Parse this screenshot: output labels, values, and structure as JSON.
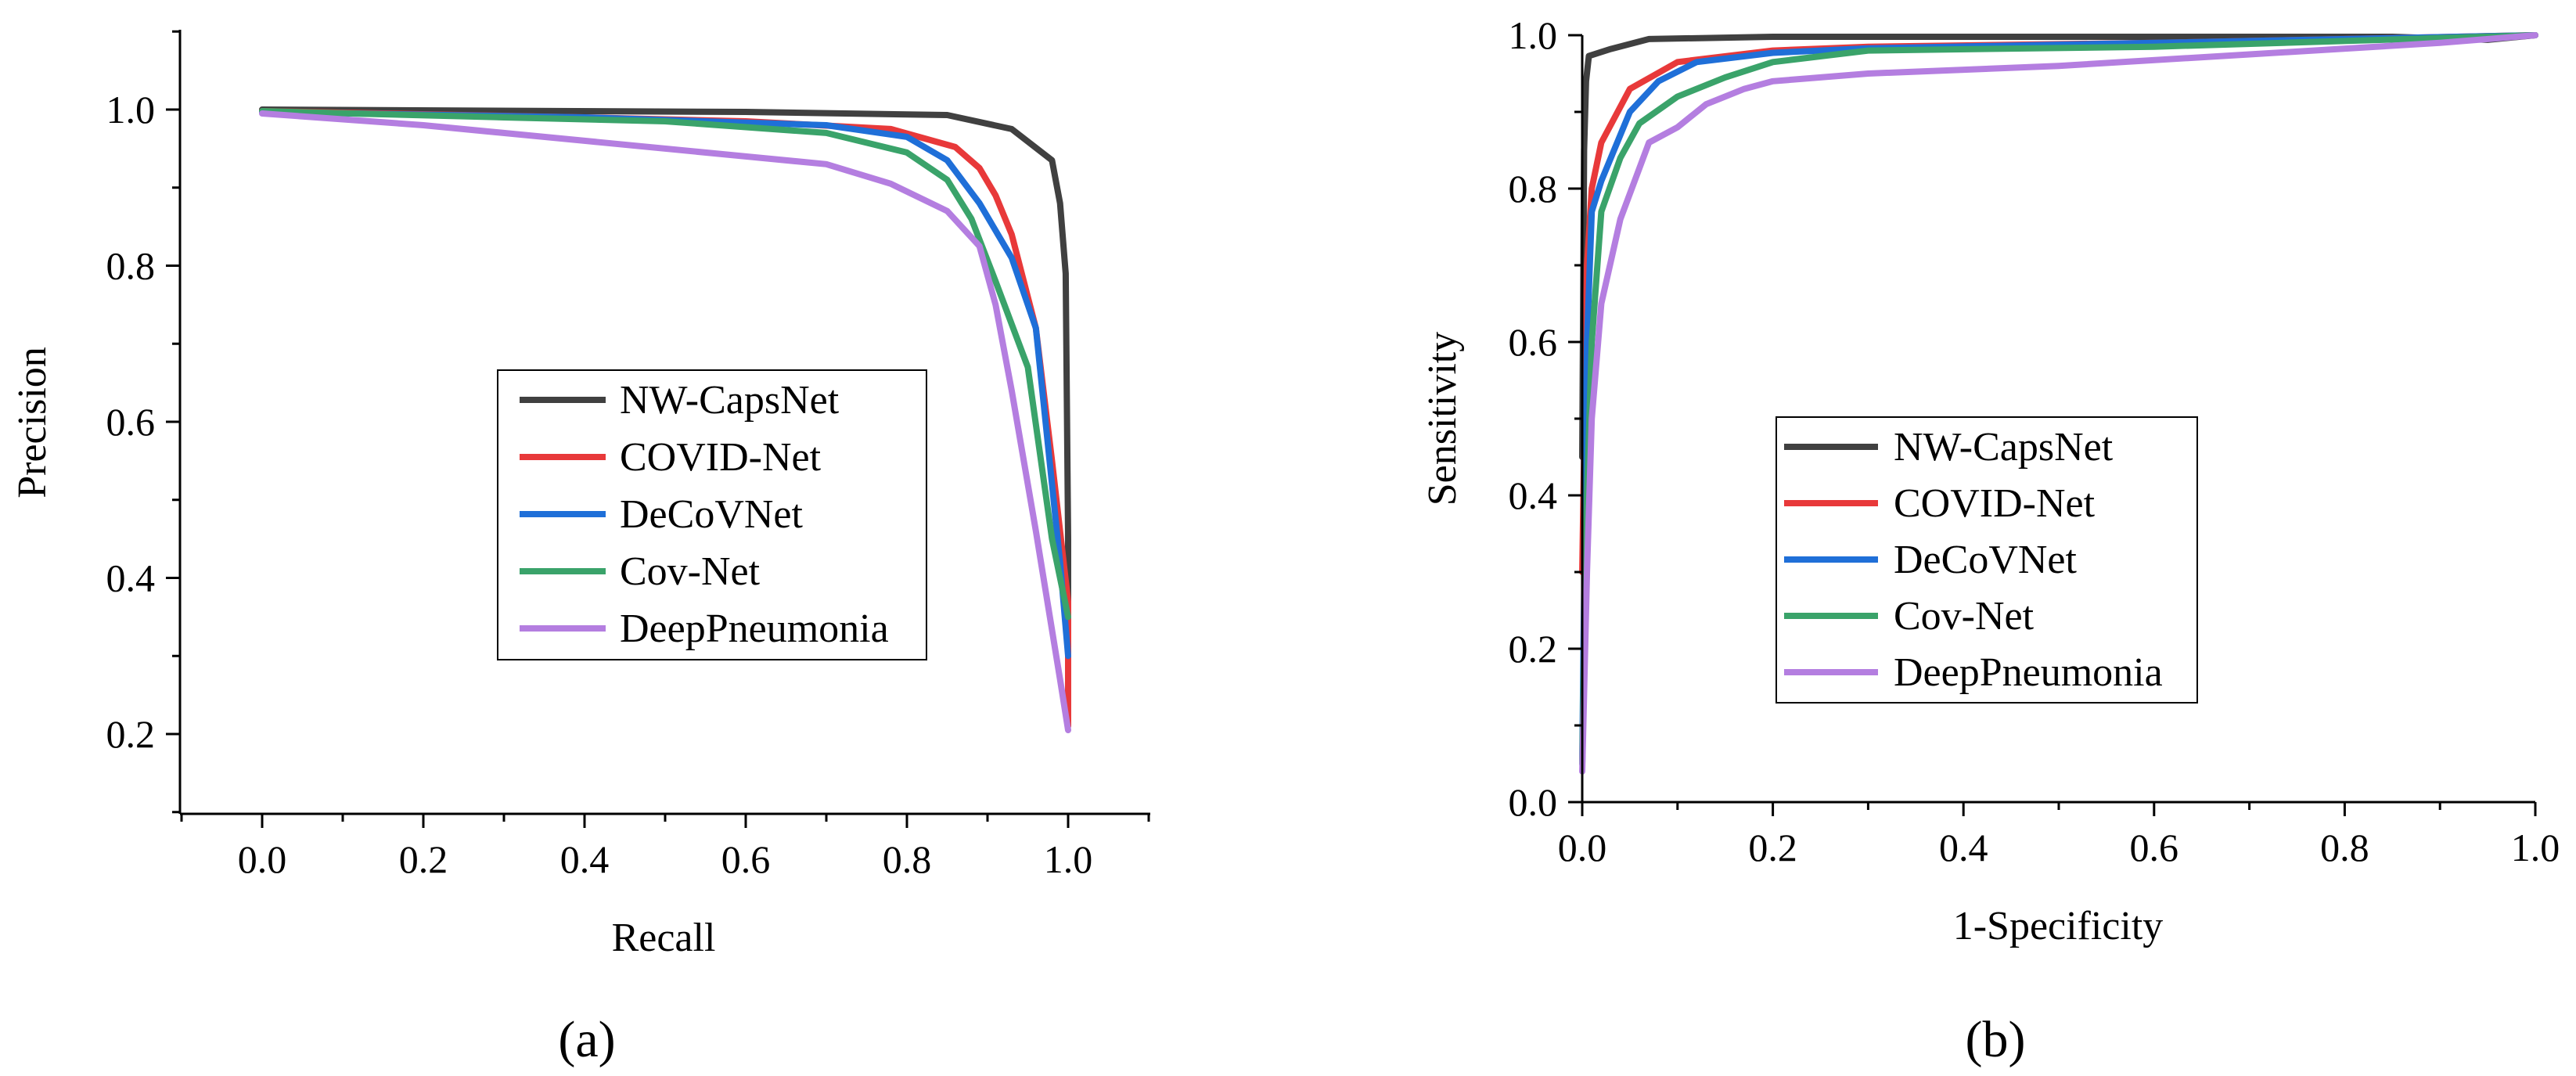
{
  "colors": {
    "NW-CapsNet": "#404040",
    "COVID-Net": "#e8393a",
    "DeCoVNet": "#1f6fd8",
    "Cov-Net": "#3aa36a",
    "DeepPneumonia": "#b47ee0"
  },
  "chart_data": [
    {
      "type": "line",
      "panel_label": "(a)",
      "xlabel": "Recall",
      "ylabel": "Precision",
      "xlim": [
        -0.1,
        1.1
      ],
      "ylim": [
        0.1,
        1.1
      ],
      "xticks": [
        "0.0",
        "0.2",
        "0.4",
        "0.6",
        "0.8",
        "1.0"
      ],
      "yticks": [
        "0.2",
        "0.4",
        "0.6",
        "0.8",
        "1.0"
      ],
      "legend_position": "center",
      "series": [
        {
          "name": "NW-CapsNet",
          "x": [
            0.0,
            0.6,
            0.85,
            0.93,
            0.98,
            0.99,
            0.997,
            1.0,
            1.0
          ],
          "y": [
            1.0,
            0.997,
            0.993,
            0.975,
            0.935,
            0.88,
            0.79,
            0.45,
            0.32
          ]
        },
        {
          "name": "COVID-Net",
          "x": [
            0.0,
            0.4,
            0.6,
            0.78,
            0.86,
            0.89,
            0.91,
            0.93,
            0.96,
            0.98,
            1.0,
            1.0
          ],
          "y": [
            0.998,
            0.99,
            0.985,
            0.975,
            0.952,
            0.925,
            0.89,
            0.84,
            0.72,
            0.55,
            0.37,
            0.21
          ]
        },
        {
          "name": "DeCoVNet",
          "x": [
            0.0,
            0.4,
            0.7,
            0.8,
            0.85,
            0.89,
            0.93,
            0.96,
            0.99,
            1.0
          ],
          "y": [
            0.997,
            0.99,
            0.98,
            0.965,
            0.935,
            0.88,
            0.81,
            0.72,
            0.42,
            0.3
          ]
        },
        {
          "name": "Cov-Net",
          "x": [
            0.0,
            0.3,
            0.5,
            0.7,
            0.8,
            0.85,
            0.88,
            0.91,
            0.95,
            0.98,
            1.0
          ],
          "y": [
            0.998,
            0.99,
            0.985,
            0.97,
            0.945,
            0.91,
            0.86,
            0.78,
            0.67,
            0.45,
            0.35
          ]
        },
        {
          "name": "DeepPneumonia",
          "x": [
            0.0,
            0.2,
            0.4,
            0.6,
            0.7,
            0.78,
            0.85,
            0.89,
            0.91,
            0.93,
            0.96,
            0.99,
            1.0
          ],
          "y": [
            0.995,
            0.98,
            0.96,
            0.94,
            0.93,
            0.905,
            0.87,
            0.825,
            0.75,
            0.64,
            0.46,
            0.27,
            0.205
          ]
        }
      ]
    },
    {
      "type": "line",
      "panel_label": "(b)",
      "xlabel": "1-Specificity",
      "ylabel": "Sensitivity",
      "xlim": [
        0.0,
        1.0
      ],
      "ylim": [
        0.0,
        1.0
      ],
      "xticks": [
        "0.0",
        "0.2",
        "0.4",
        "0.6",
        "0.8",
        "1.0"
      ],
      "yticks": [
        "0.0",
        "0.2",
        "0.4",
        "0.6",
        "0.8",
        "1.0"
      ],
      "legend_position": "center-left",
      "series": [
        {
          "name": "NW-CapsNet",
          "x": [
            0.0,
            0.002,
            0.004,
            0.007,
            0.03,
            0.07,
            0.2,
            0.5,
            0.85,
            0.95,
            1.0
          ],
          "y": [
            0.45,
            0.85,
            0.94,
            0.973,
            0.982,
            0.995,
            0.998,
            0.998,
            0.998,
            0.994,
            1.0
          ]
        },
        {
          "name": "COVID-Net",
          "x": [
            0.0,
            0.005,
            0.01,
            0.02,
            0.05,
            0.1,
            0.2,
            0.3,
            0.6,
            1.0
          ],
          "y": [
            0.3,
            0.7,
            0.8,
            0.86,
            0.93,
            0.965,
            0.98,
            0.985,
            0.99,
            1.0
          ]
        },
        {
          "name": "DeCoVNet",
          "x": [
            0.0,
            0.005,
            0.01,
            0.02,
            0.05,
            0.08,
            0.12,
            0.2,
            0.3,
            0.6,
            1.0
          ],
          "y": [
            0.05,
            0.6,
            0.77,
            0.81,
            0.9,
            0.94,
            0.965,
            0.977,
            0.983,
            0.99,
            1.0
          ]
        },
        {
          "name": "Cov-Net",
          "x": [
            0.0,
            0.005,
            0.01,
            0.02,
            0.04,
            0.06,
            0.1,
            0.15,
            0.2,
            0.3,
            0.6,
            1.0
          ],
          "y": [
            0.05,
            0.4,
            0.6,
            0.77,
            0.84,
            0.885,
            0.92,
            0.945,
            0.965,
            0.98,
            0.985,
            1.0
          ]
        },
        {
          "name": "DeepPneumonia",
          "x": [
            0.0,
            0.005,
            0.01,
            0.02,
            0.04,
            0.07,
            0.1,
            0.13,
            0.17,
            0.2,
            0.3,
            0.5,
            0.7,
            0.9,
            1.0
          ],
          "y": [
            0.04,
            0.3,
            0.5,
            0.65,
            0.76,
            0.86,
            0.88,
            0.91,
            0.93,
            0.94,
            0.95,
            0.96,
            0.975,
            0.99,
            1.0
          ]
        }
      ]
    }
  ]
}
